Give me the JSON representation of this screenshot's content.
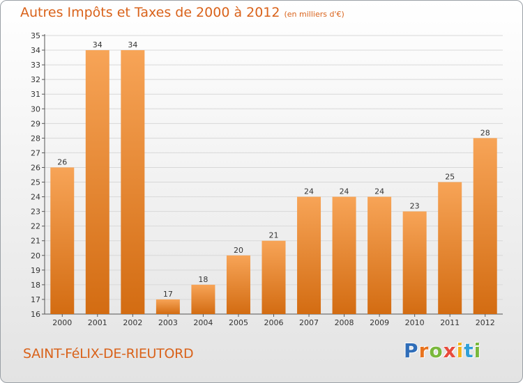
{
  "header": {
    "title": "Autres Impôts et Taxes de 2000 à 2012",
    "subtitle": "(en milliers d'€)"
  },
  "footer": {
    "commune": "SAINT-FéLIX-DE-RIEUTORD",
    "logo": [
      "P",
      "r",
      "o",
      "x",
      "i",
      "t",
      "i"
    ]
  },
  "colors": {
    "bar_top": "#f7a457",
    "bar_bottom": "#d36c12",
    "accent": "#d9621a"
  },
  "chart_data": {
    "type": "bar",
    "title": "Autres Impôts et Taxes de 2000 à 2012",
    "subtitle": "(en milliers d'€)",
    "xlabel": "",
    "ylabel": "",
    "categories": [
      "2000",
      "2001",
      "2002",
      "2003",
      "2004",
      "2005",
      "2006",
      "2007",
      "2008",
      "2009",
      "2010",
      "2011",
      "2012"
    ],
    "values": [
      26,
      34,
      34,
      17,
      18,
      20,
      21,
      24,
      24,
      24,
      23,
      25,
      28
    ],
    "ylim": [
      16,
      35
    ],
    "yticks": [
      16,
      17,
      18,
      19,
      20,
      21,
      22,
      23,
      24,
      25,
      26,
      27,
      28,
      29,
      30,
      31,
      32,
      33,
      34,
      35
    ],
    "grid": true,
    "legend": "none"
  }
}
